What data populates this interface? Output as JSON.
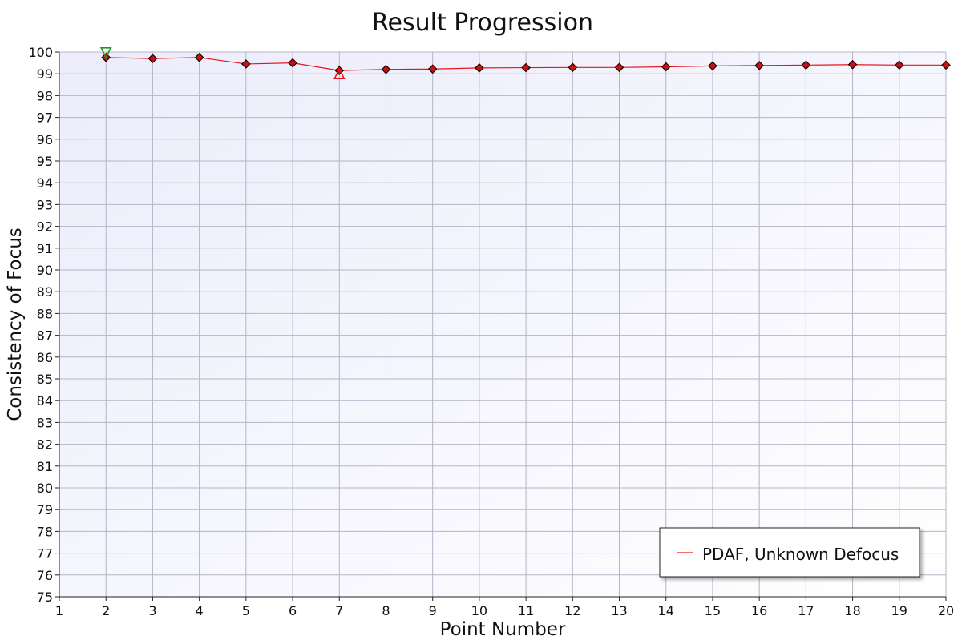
{
  "chart_data": {
    "type": "line",
    "title": "Result Progression",
    "xlabel": "Point Number",
    "ylabel": "Consistency of Focus",
    "xlim": [
      1,
      20
    ],
    "ylim": [
      75,
      100
    ],
    "x_ticks": [
      "1",
      "2",
      "3",
      "4",
      "5",
      "6",
      "7",
      "8",
      "9",
      "10",
      "11",
      "12",
      "13",
      "14",
      "15",
      "16",
      "17",
      "18",
      "19",
      "20"
    ],
    "y_ticks": [
      "75",
      "76",
      "77",
      "78",
      "79",
      "80",
      "81",
      "82",
      "83",
      "84",
      "85",
      "86",
      "87",
      "88",
      "89",
      "90",
      "91",
      "92",
      "93",
      "94",
      "95",
      "96",
      "97",
      "98",
      "99",
      "100"
    ],
    "grid": true,
    "legend_position": "bottom-right",
    "series": [
      {
        "name": "PDAF, Unknown Defocus",
        "color": "#e8141c",
        "marker": "diamond",
        "x": [
          2,
          3,
          4,
          5,
          6,
          7,
          8,
          9,
          10,
          11,
          12,
          13,
          14,
          15,
          16,
          17,
          18,
          19,
          20
        ],
        "y": [
          99.75,
          99.7,
          99.75,
          99.45,
          99.5,
          99.15,
          99.2,
          99.22,
          99.27,
          99.28,
          99.29,
          99.29,
          99.32,
          99.36,
          99.38,
          99.4,
          99.42,
          99.4,
          99.4
        ]
      }
    ],
    "annotations": [
      {
        "type": "max-marker",
        "shape": "triangle-down",
        "color": "#1a9a1a",
        "x": 2,
        "y": 99.97
      },
      {
        "type": "min-marker",
        "shape": "triangle-up",
        "color": "#e8141c",
        "x": 7,
        "y": 99.0
      }
    ],
    "colors": {
      "plot_background_start": "#ececfb",
      "plot_background_end": "#ffffff",
      "grid": "#b4b4c6",
      "marker_fill": "#d01010",
      "marker_stroke": "#1a0000"
    }
  }
}
